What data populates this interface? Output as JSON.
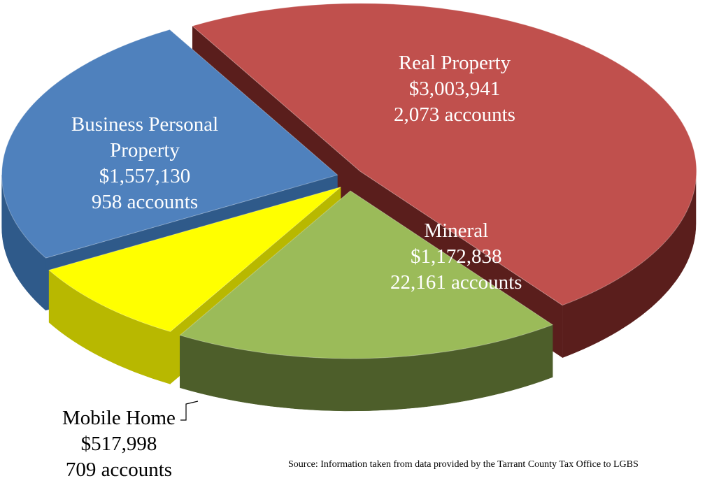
{
  "chart_data": {
    "type": "pie",
    "categories": [
      "Real Property",
      "Mineral",
      "Mobile Home",
      "Business Personal Property"
    ],
    "values": [
      3003941,
      1172838,
      517998,
      1557130
    ],
    "value_labels": [
      "$3,003,941",
      "$1,172,838",
      "$517,998",
      "$1,557,130"
    ],
    "accounts": {
      "values": [
        2073,
        22161,
        709,
        958
      ],
      "value_labels": [
        "2,073 accounts",
        "22,161 accounts",
        "709 accounts",
        "958 accounts"
      ]
    },
    "colors": [
      "#c0504d",
      "#9bbb59",
      "#ffff00",
      "#4f81bd"
    ],
    "side_colors": [
      "#5a1e1c",
      "#4d5e2a",
      "#b8b800",
      "#2f5a8a"
    ],
    "exploded": true,
    "source": "Source: Information taken from data provided by the Tarrant County Tax Office to LGBS"
  }
}
